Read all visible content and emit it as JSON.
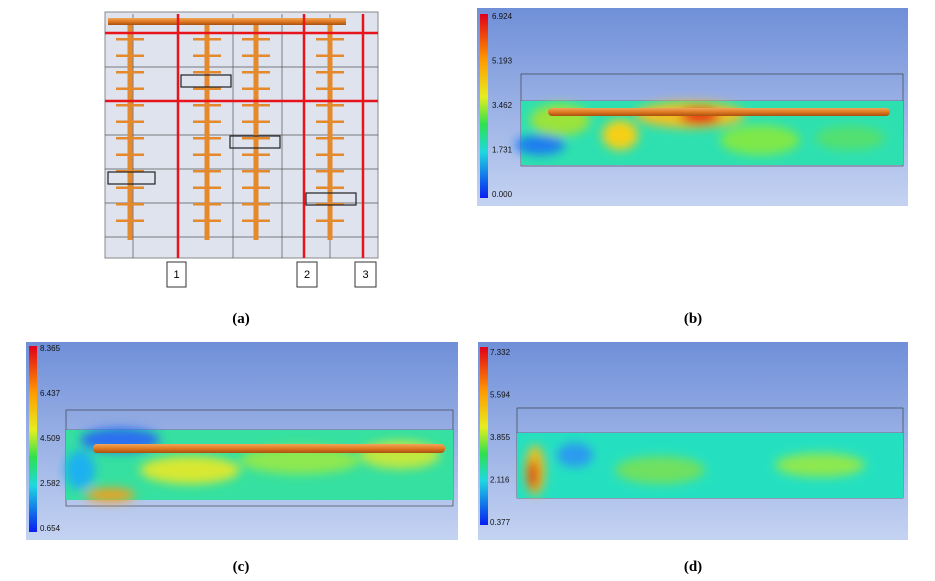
{
  "panels": [
    {
      "caption": "(a)",
      "section_labels": [
        "1",
        "2",
        "3"
      ]
    },
    {
      "caption": "(b)",
      "colorbar": [
        "6.924",
        "5.193",
        "3.462",
        "1.731",
        "0.000"
      ]
    },
    {
      "caption": "(c)",
      "colorbar": [
        "8.365",
        "6.437",
        "4.509",
        "2.582",
        "0.654"
      ]
    },
    {
      "caption": "(d)",
      "colorbar": [
        "7.332",
        "5.594",
        "3.855",
        "2.116",
        "0.377"
      ]
    }
  ]
}
